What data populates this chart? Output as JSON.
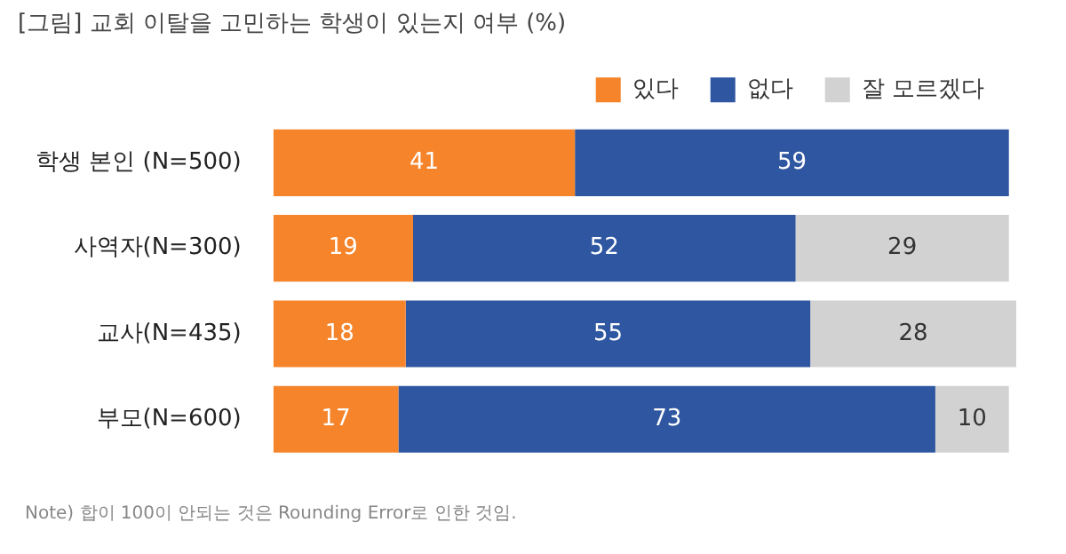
{
  "chart_data": {
    "type": "bar",
    "orientation": "horizontal",
    "stacked": true,
    "data_labels": true,
    "legend": "top right",
    "title": "[그림] 교회 이탈을 고민하는 학생이 있는지 여부 (%)",
    "categories": [
      "학생 본인 (N=500)",
      "사역자(N=300)",
      "교사(N=435)",
      "부모(N=600)"
    ],
    "series": [
      {
        "name": "있다",
        "color": "#f5842a",
        "values": [
          41,
          19,
          18,
          17
        ]
      },
      {
        "name": "없다",
        "color": "#2f56a0",
        "values": [
          59,
          52,
          55,
          73
        ]
      },
      {
        "name": "잘 모르겠다",
        "color": "#d2d2d2",
        "values": [
          null,
          29,
          28,
          10
        ]
      }
    ],
    "annotations": [
      "Note) 합이 100이 안되는 것은 Rounding Error로 인한 것임."
    ]
  }
}
